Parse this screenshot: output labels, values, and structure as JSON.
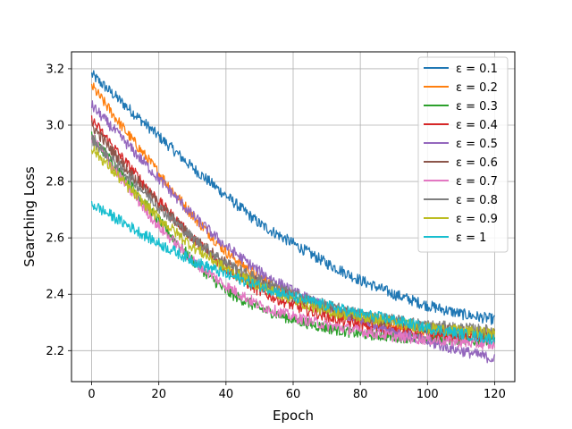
{
  "chart_data": {
    "type": "line",
    "title": "",
    "xlabel": "Epoch",
    "ylabel": "Searching Loss",
    "xlim": [
      -6,
      126
    ],
    "ylim": [
      2.09,
      3.26
    ],
    "xticks": [
      0,
      20,
      40,
      60,
      80,
      100,
      120
    ],
    "yticks": [
      2.2,
      2.4,
      2.6,
      2.8,
      3.0,
      3.2
    ],
    "xtick_labels": [
      "0",
      "20",
      "40",
      "60",
      "80",
      "100",
      "120"
    ],
    "ytick_labels": [
      "2.2",
      "2.4",
      "2.6",
      "2.8",
      "3.0",
      "3.2"
    ],
    "grid": true,
    "legend_position": "top-right",
    "x": [
      0,
      10,
      20,
      30,
      40,
      50,
      60,
      70,
      80,
      90,
      100,
      110,
      120
    ],
    "noise_amplitude": 0.02,
    "series": [
      {
        "name": "ε = 0.1",
        "color": "#1f77b4",
        "values": [
          3.18,
          3.07,
          2.96,
          2.85,
          2.75,
          2.65,
          2.58,
          2.51,
          2.45,
          2.4,
          2.36,
          2.33,
          2.31
        ]
      },
      {
        "name": "ε = 0.2",
        "color": "#ff7f0e",
        "values": [
          3.14,
          2.98,
          2.83,
          2.68,
          2.55,
          2.46,
          2.39,
          2.35,
          2.31,
          2.29,
          2.27,
          2.26,
          2.25
        ]
      },
      {
        "name": "ε = 0.3",
        "color": "#2ca02c",
        "values": [
          2.96,
          2.81,
          2.66,
          2.52,
          2.41,
          2.35,
          2.31,
          2.28,
          2.26,
          2.25,
          2.24,
          2.24,
          2.23
        ]
      },
      {
        "name": "ε = 0.4",
        "color": "#d62728",
        "values": [
          3.02,
          2.87,
          2.73,
          2.6,
          2.49,
          2.41,
          2.36,
          2.32,
          2.29,
          2.27,
          2.26,
          2.25,
          2.24
        ]
      },
      {
        "name": "ε = 0.5",
        "color": "#9467bd",
        "values": [
          3.07,
          2.94,
          2.81,
          2.68,
          2.57,
          2.48,
          2.41,
          2.35,
          2.31,
          2.27,
          2.23,
          2.2,
          2.17
        ]
      },
      {
        "name": "ε = 0.6",
        "color": "#8c564b",
        "values": [
          3.0,
          2.85,
          2.72,
          2.6,
          2.51,
          2.44,
          2.39,
          2.35,
          2.32,
          2.3,
          2.28,
          2.27,
          2.26
        ]
      },
      {
        "name": "ε = 0.7",
        "color": "#e377c2",
        "values": [
          2.96,
          2.79,
          2.64,
          2.52,
          2.43,
          2.36,
          2.32,
          2.29,
          2.27,
          2.25,
          2.24,
          2.23,
          2.22
        ]
      },
      {
        "name": "ε = 0.8",
        "color": "#7f7f7f",
        "values": [
          2.95,
          2.83,
          2.71,
          2.6,
          2.51,
          2.45,
          2.4,
          2.36,
          2.33,
          2.31,
          2.29,
          2.28,
          2.27
        ]
      },
      {
        "name": "ε = 0.9",
        "color": "#bcbd22",
        "values": [
          2.92,
          2.79,
          2.67,
          2.57,
          2.49,
          2.43,
          2.38,
          2.34,
          2.32,
          2.3,
          2.28,
          2.27,
          2.26
        ]
      },
      {
        "name": "ε = 1",
        "color": "#17becf",
        "values": [
          2.72,
          2.65,
          2.58,
          2.52,
          2.47,
          2.43,
          2.39,
          2.36,
          2.33,
          2.31,
          2.28,
          2.26,
          2.24
        ]
      }
    ]
  }
}
